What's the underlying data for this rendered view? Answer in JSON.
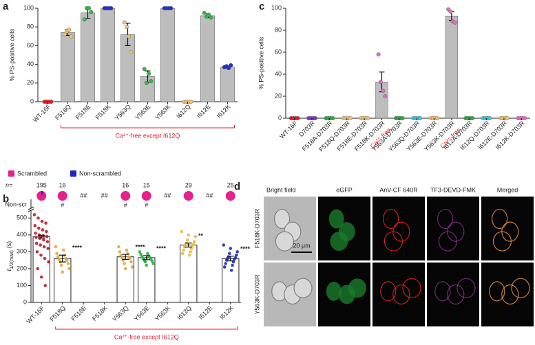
{
  "chart_data": [
    {
      "type": "bar",
      "panel": "a",
      "y_label": "% PS-positive cells",
      "categories": [
        "WT-16F",
        "F518Q",
        "F518E",
        "F518K",
        "Y563Q",
        "Y563E",
        "Y563K",
        "I612Q",
        "I612E",
        "I612K"
      ],
      "values": [
        0,
        74,
        95,
        100,
        72,
        27,
        100,
        0,
        92,
        37
      ],
      "errors": [
        0,
        3,
        6,
        0,
        12,
        6,
        0,
        0,
        2,
        1
      ],
      "points": [
        [
          0,
          0,
          0,
          0
        ],
        [
          72,
          75,
          77,
          70
        ],
        [
          88,
          100,
          100,
          96
        ],
        [
          100,
          100,
          100,
          100
        ],
        [
          85,
          80,
          70,
          53
        ],
        [
          35,
          20,
          30,
          22
        ],
        [
          100,
          100,
          100,
          100
        ],
        [
          0,
          0,
          0,
          0
        ],
        [
          95,
          91,
          93,
          90
        ],
        [
          37,
          38,
          36,
          39
        ]
      ],
      "point_colors": [
        "#e0202a",
        "#f0c070",
        "#33bb44",
        "#2233cc",
        "#f0c070",
        "#33bb44",
        "#2233cc",
        "#f0c070",
        "#33bb44",
        "#2233cc"
      ],
      "color": "#bdbdbd",
      "ylim": [
        0,
        100
      ],
      "yticks": [
        0,
        20,
        40,
        60,
        80,
        100
      ],
      "annotation": "Ca²⁺-free except I612Q"
    },
    {
      "type": "bar",
      "panel": "c",
      "y_label": "% PS-positive cells",
      "categories": [
        "WT-16F",
        "D703R",
        "F518A-D703R",
        "F518Q-D703R",
        "F518E-D703R",
        "F518K-D703R",
        "Y563A-D703R",
        "Y563Q-D703R",
        "Y563E-D703R",
        "Y563K-D703R",
        "I612A-D703R",
        "I612Q-D703R",
        "I612E-D703R",
        "I612K-D703R"
      ],
      "values": [
        0,
        0,
        0,
        0,
        0,
        33,
        0,
        0,
        0,
        93,
        0,
        0,
        0,
        0
      ],
      "errors": [
        0,
        0,
        0,
        0,
        0,
        9,
        0,
        0,
        0,
        4,
        0,
        0,
        0,
        0
      ],
      "points": [
        [
          0,
          0,
          0,
          0
        ],
        [
          0,
          0,
          0,
          0
        ],
        [
          0,
          0,
          0,
          0
        ],
        [
          0,
          0,
          0,
          0
        ],
        [
          0,
          0,
          0,
          0
        ],
        [
          58,
          33,
          25,
          20
        ],
        [
          0,
          0,
          0,
          0
        ],
        [
          0,
          0,
          0,
          0
        ],
        [
          0,
          0,
          0,
          0
        ],
        [
          99,
          97,
          88,
          87
        ],
        [
          0,
          0,
          0,
          0
        ],
        [
          0,
          0,
          0,
          0
        ],
        [
          0,
          0,
          0,
          0
        ],
        [
          0,
          0,
          0,
          0
        ]
      ],
      "point_colors": [
        "#e0202a",
        "#8833cc",
        "#33aa44",
        "#f0c070",
        "#f0c070",
        "#e070c0",
        "#33aa44",
        "#33ccdd",
        "#f0c070",
        "#e070c0",
        "#33aa44",
        "#33ccdd",
        "#f0c070",
        "#e070c0"
      ],
      "color": "#bdbdbd",
      "ylim": [
        0,
        100
      ],
      "yticks": [
        0,
        20,
        40,
        60,
        80,
        100
      ],
      "category_notes": [
        null,
        null,
        null,
        null,
        null,
        "Ca²⁺-free",
        null,
        null,
        null,
        "Ca²⁺-free",
        null,
        null,
        null,
        null
      ]
    },
    {
      "type": "dotbar",
      "panel": "b",
      "y_label": "t",
      "y_label_sub": "1/2(max)",
      "y_label_unit": "(s)",
      "top_label": "Non-scr",
      "n_label": "n=",
      "legend": [
        {
          "name": "Scrambled",
          "color": "#e6218c"
        },
        {
          "name": "Non-scrambled",
          "color": "#1f22c8"
        }
      ],
      "categories": [
        "WT-16F",
        "F518Q",
        "F518E",
        "F518K",
        "Y563Q",
        "Y563E",
        "Y563K",
        "I612Q",
        "I612E",
        "I612K"
      ],
      "n": [
        195,
        16,
        null,
        null,
        16,
        15,
        null,
        29,
        null,
        25
      ],
      "pies": [
        [
          92,
          8
        ],
        [
          100,
          0
        ],
        null,
        null,
        [
          100,
          0
        ],
        [
          100,
          0
        ],
        null,
        [
          100,
          0
        ],
        null,
        [
          100,
          0
        ]
      ],
      "markers": [
        null,
        "#",
        "##",
        "##",
        "#",
        "#",
        "##",
        null,
        "##",
        null
      ],
      "values": [
        390,
        260,
        null,
        null,
        270,
        265,
        null,
        340,
        null,
        260
      ],
      "errors": [
        8,
        20,
        null,
        null,
        15,
        12,
        null,
        12,
        null,
        14
      ],
      "significance": [
        null,
        "****",
        null,
        null,
        "****",
        "****",
        null,
        "**",
        null,
        "****"
      ],
      "points": [
        [
          520,
          500,
          480,
          470,
          455,
          440,
          430,
          420,
          410,
          400,
          395,
          390,
          385,
          380,
          370,
          360,
          350,
          340,
          330,
          320,
          300,
          280,
          260,
          240,
          200,
          150,
          100
        ],
        [
          330,
          310,
          290,
          280,
          270,
          260,
          255,
          250,
          240,
          230,
          220,
          200,
          180
        ],
        [],
        [],
        [
          330,
          310,
          300,
          290,
          280,
          270,
          265,
          260,
          250,
          240,
          230,
          210,
          200
        ],
        [
          300,
          290,
          285,
          275,
          270,
          265,
          260,
          255,
          250,
          245,
          240,
          230,
          220
        ],
        [],
        [
          420,
          400,
          390,
          370,
          360,
          350,
          345,
          340,
          335,
          330,
          320,
          310,
          300,
          290,
          280
        ],
        [],
        [
          340,
          320,
          300,
          290,
          280,
          270,
          265,
          260,
          255,
          250,
          240,
          230,
          220,
          210,
          190
        ]
      ],
      "point_colors": [
        "#b81e2e",
        "#d8a848",
        null,
        null,
        "#d8a848",
        "#2fae46",
        null,
        "#e8b84a",
        null,
        "#1f2fb0"
      ],
      "ylim": [
        0,
        550
      ],
      "yticks": [
        0,
        100,
        200,
        300,
        400,
        500
      ],
      "annotation": "Ca²⁺-free except I612Q"
    }
  ],
  "panel_d": {
    "panel": "d",
    "columns": [
      "Bright field",
      "eGFP",
      "AnV-CF 640R",
      "TF3-DEVD-FMK",
      "Merged"
    ],
    "rows": [
      "F518K-D703R",
      "Y563K-D703R"
    ],
    "scale_bar": "20 μm"
  }
}
